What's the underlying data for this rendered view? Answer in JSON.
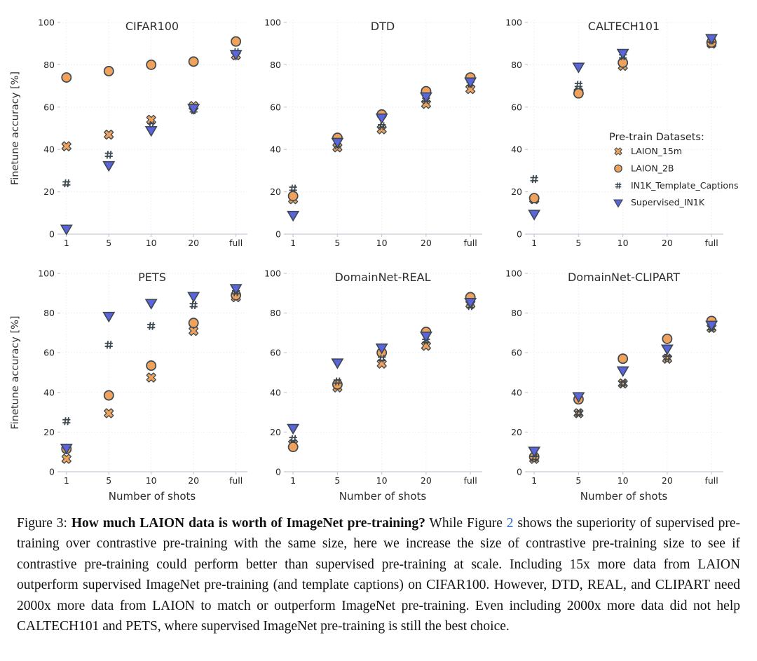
{
  "figure": {
    "ylabel": "Finetune accuracy [%]",
    "xlabel": "Number of shots",
    "legend": {
      "title": "Pre-train Datasets:",
      "entries": [
        {
          "label": "LAION_15m",
          "marker": "x-cross",
          "fill": "#F0A25C"
        },
        {
          "label": "LAION_2B",
          "marker": "circle",
          "fill": "#F0A25C"
        },
        {
          "label": "IN1K_Template_Captions",
          "marker": "hash",
          "fill": "#3C4850"
        },
        {
          "label": "Supervised_IN1K",
          "marker": "triangle-down",
          "fill": "#5B64DB"
        }
      ]
    },
    "colors": {
      "marker_outline": "#3C4850",
      "grid": "#ECEAF4",
      "axis": "#C9C9D3",
      "tick_text": "#262626",
      "title_text": "#2D2D2D"
    }
  },
  "chart_data": [
    {
      "type": "scatter",
      "title": "CIFAR100",
      "categories": [
        "1",
        "5",
        "10",
        "20",
        "full"
      ],
      "ylim": [
        0,
        100
      ],
      "yticks": [
        0,
        20,
        40,
        60,
        80,
        100
      ],
      "grid": true,
      "show_ylabel": true,
      "show_xlabel": false,
      "show_legend": false,
      "series": [
        {
          "name": "LAION_15m",
          "values": [
            41.5,
            47,
            54,
            60.5,
            84.5
          ]
        },
        {
          "name": "LAION_2B",
          "values": [
            74,
            77,
            80,
            81.5,
            91
          ]
        },
        {
          "name": "IN1K_Template_Captions",
          "values": [
            24,
            37.5,
            51.5,
            58.5,
            86
          ]
        },
        {
          "name": "Supervised_IN1K",
          "values": [
            2.5,
            32.5,
            49,
            59.5,
            85
          ]
        }
      ]
    },
    {
      "type": "scatter",
      "title": "DTD",
      "categories": [
        "1",
        "5",
        "10",
        "20",
        "full"
      ],
      "ylim": [
        0,
        100
      ],
      "yticks": [
        0,
        20,
        40,
        60,
        80,
        100
      ],
      "grid": true,
      "show_ylabel": false,
      "show_xlabel": false,
      "show_legend": false,
      "series": [
        {
          "name": "LAION_15m",
          "values": [
            16.5,
            41,
            49.5,
            61.5,
            68.5
          ]
        },
        {
          "name": "LAION_2B",
          "values": [
            18,
            45.5,
            56.5,
            67.5,
            74
          ]
        },
        {
          "name": "IN1K_Template_Captions",
          "values": [
            21.5,
            42,
            51,
            63.5,
            71
          ]
        },
        {
          "name": "Supervised_IN1K",
          "values": [
            9,
            43.5,
            55,
            65,
            72
          ]
        }
      ]
    },
    {
      "type": "scatter",
      "title": "CALTECH101",
      "categories": [
        "1",
        "5",
        "10",
        "20",
        "full"
      ],
      "ylim": [
        0,
        100
      ],
      "yticks": [
        0,
        20,
        40,
        60,
        80,
        100
      ],
      "grid": true,
      "show_ylabel": false,
      "show_xlabel": false,
      "show_legend": true,
      "legend_position": "inside-right-middle",
      "series": [
        {
          "name": "LAION_15m",
          "values": [
            16.5,
            67,
            79.5,
            null,
            90
          ]
        },
        {
          "name": "LAION_2B",
          "values": [
            17,
            66.5,
            81,
            null,
            90.5
          ]
        },
        {
          "name": "IN1K_Template_Captions",
          "values": [
            26,
            70.5,
            84,
            null,
            91.5
          ]
        },
        {
          "name": "Supervised_IN1K",
          "values": [
            9.5,
            79,
            85.5,
            null,
            92.5
          ]
        }
      ]
    },
    {
      "type": "scatter",
      "title": "PETS",
      "categories": [
        "1",
        "5",
        "10",
        "20",
        "full"
      ],
      "ylim": [
        0,
        100
      ],
      "yticks": [
        0,
        20,
        40,
        60,
        80,
        100
      ],
      "grid": true,
      "show_ylabel": true,
      "show_xlabel": true,
      "show_legend": false,
      "series": [
        {
          "name": "LAION_15m",
          "values": [
            6.5,
            29.5,
            47.5,
            71,
            88
          ]
        },
        {
          "name": "LAION_2B",
          "values": [
            11.5,
            38.5,
            53.5,
            75,
            89
          ]
        },
        {
          "name": "IN1K_Template_Captions",
          "values": [
            25.5,
            64,
            73.5,
            84,
            90.5
          ]
        },
        {
          "name": "Supervised_IN1K",
          "values": [
            12,
            78.5,
            85,
            88.5,
            92.5
          ]
        }
      ]
    },
    {
      "type": "scatter",
      "title": "DomainNet-REAL",
      "categories": [
        "1",
        "5",
        "10",
        "20",
        "full"
      ],
      "ylim": [
        0,
        100
      ],
      "yticks": [
        0,
        20,
        40,
        60,
        80,
        100
      ],
      "grid": true,
      "show_ylabel": false,
      "show_xlabel": true,
      "show_legend": false,
      "series": [
        {
          "name": "LAION_15m",
          "values": [
            14,
            42.5,
            54.5,
            63.5,
            84.5
          ]
        },
        {
          "name": "LAION_2B",
          "values": [
            12.5,
            44,
            60,
            70.5,
            88
          ]
        },
        {
          "name": "IN1K_Template_Captions",
          "values": [
            16.5,
            45.5,
            57,
            66,
            83.5
          ]
        },
        {
          "name": "Supervised_IN1K",
          "values": [
            22,
            55,
            62.5,
            68.5,
            85.5
          ]
        }
      ]
    },
    {
      "type": "scatter",
      "title": "DomainNet-CLIPART",
      "categories": [
        "1",
        "5",
        "10",
        "20",
        "full"
      ],
      "ylim": [
        0,
        100
      ],
      "yticks": [
        0,
        20,
        40,
        60,
        80,
        100
      ],
      "grid": true,
      "show_ylabel": false,
      "show_xlabel": true,
      "show_legend": false,
      "series": [
        {
          "name": "LAION_15m",
          "values": [
            6.5,
            29.5,
            44.5,
            57,
            72.5
          ]
        },
        {
          "name": "LAION_2B",
          "values": [
            7.5,
            36.5,
            57,
            67,
            76
          ]
        },
        {
          "name": "IN1K_Template_Captions",
          "values": [
            7,
            29.5,
            44.5,
            57.5,
            72.5
          ]
        },
        {
          "name": "Supervised_IN1K",
          "values": [
            10.5,
            38,
            51,
            62,
            74
          ]
        }
      ]
    }
  ],
  "caption": {
    "label": "Figure 3: ",
    "title_bold": "How much LAION data is worth of ImageNet pre-training?",
    "text_before_link": " While Figure ",
    "link_text": "2",
    "link_color": "#2E6CD2",
    "text_after_link": " shows the superiority of supervised pre-training over contrastive pre-training with the same size, here we increase the size of contrastive pre-training size to see if contrastive pre-training could perform better than supervised pre-training at scale. Including 15x more data from LAION outperform supervised ImageNet pre-training (and template captions) on CIFAR100. However, DTD, REAL, and CLIPART need 2000x more data from LAION to match or outperform ImageNet pre-training. Even including 2000x more data did not help CALTECH101 and PETS, where supervised ImageNet pre-training is still the best choice."
  }
}
